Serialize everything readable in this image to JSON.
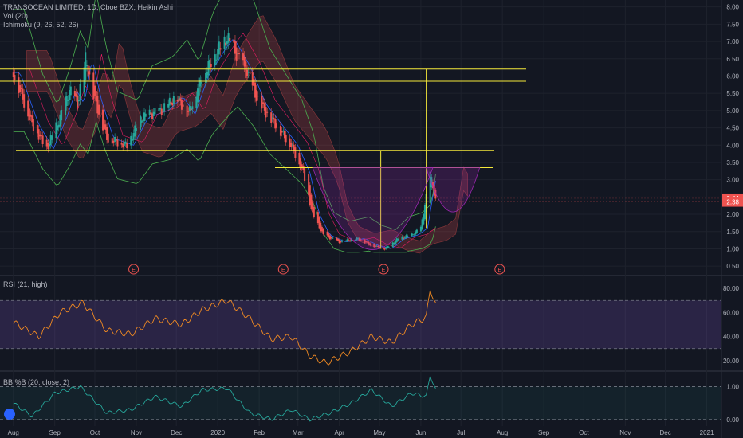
{
  "legend": {
    "symbol": "TRANSOCEAN LIMITED, 1D, Cboe BZX, Heikin Ashi",
    "vol": "Vol (20)",
    "ichimoku": "Ichimoku (9, 26, 52, 26)"
  },
  "panes": {
    "rsi_label": "RSI (21, high)",
    "bb_label": "BB %B (20, close, 2)"
  },
  "colors": {
    "up": "#26a69a",
    "down": "#ef5350",
    "yellow": "#f5e93a",
    "rsi": "#f28b22",
    "bb": "#26a69a",
    "price_tag": "#ef5350"
  },
  "chart_data": [
    {
      "type": "candlestick",
      "title": "TRANSOCEAN LIMITED, 1D, Cboe BZX, Heikin Ashi",
      "x_tick_labels": [
        "Aug",
        "Sep",
        "Oct",
        "Nov",
        "Dec",
        "2020",
        "Feb",
        "Mar",
        "Apr",
        "May",
        "Jun",
        "Jul",
        "Aug",
        "Sep",
        "Oct",
        "Nov",
        "Dec",
        "2021"
      ],
      "y_ticks": [
        "8.00",
        "7.50",
        "7.00",
        "6.50",
        "6.00",
        "5.50",
        "5.00",
        "4.50",
        "4.00",
        "3.50",
        "3.00",
        "2.50",
        "2.00",
        "1.50",
        "1.00",
        "0.50"
      ],
      "ylim": [
        0.25,
        8.2
      ],
      "price_labels": [
        "2.44",
        "2.38"
      ],
      "earnings_markers": [
        "E",
        "E",
        "E",
        "E"
      ],
      "earnings_dates": [
        "2019-10-30",
        "2020-02-19",
        "2020-05-04",
        "2020-07-30"
      ],
      "close_path": [
        {
          "x": "2019-08-01",
          "y": 6.1
        },
        {
          "x": "2019-08-15",
          "y": 4.6
        },
        {
          "x": "2019-08-26",
          "y": 3.9
        },
        {
          "x": "2019-09-05",
          "y": 4.8
        },
        {
          "x": "2019-09-12",
          "y": 5.6
        },
        {
          "x": "2019-09-18",
          "y": 5.2
        },
        {
          "x": "2019-09-24",
          "y": 6.5
        },
        {
          "x": "2019-10-01",
          "y": 5.3
        },
        {
          "x": "2019-10-10",
          "y": 4.2
        },
        {
          "x": "2019-10-25",
          "y": 4.0
        },
        {
          "x": "2019-11-05",
          "y": 4.8
        },
        {
          "x": "2019-11-20",
          "y": 5.0
        },
        {
          "x": "2019-12-01",
          "y": 5.4
        },
        {
          "x": "2019-12-10",
          "y": 4.9
        },
        {
          "x": "2019-12-20",
          "y": 6.0
        },
        {
          "x": "2020-01-02",
          "y": 6.8
        },
        {
          "x": "2020-01-08",
          "y": 7.1
        },
        {
          "x": "2020-01-20",
          "y": 6.3
        },
        {
          "x": "2020-02-01",
          "y": 5.2
        },
        {
          "x": "2020-02-15",
          "y": 4.5
        },
        {
          "x": "2020-02-25",
          "y": 4.0
        },
        {
          "x": "2020-03-05",
          "y": 3.2
        },
        {
          "x": "2020-03-12",
          "y": 2.0
        },
        {
          "x": "2020-03-20",
          "y": 1.4
        },
        {
          "x": "2020-04-01",
          "y": 1.2
        },
        {
          "x": "2020-04-15",
          "y": 1.3
        },
        {
          "x": "2020-04-25",
          "y": 1.1
        },
        {
          "x": "2020-05-05",
          "y": 1.0
        },
        {
          "x": "2020-05-15",
          "y": 1.3
        },
        {
          "x": "2020-05-25",
          "y": 1.4
        },
        {
          "x": "2020-06-01",
          "y": 1.6
        },
        {
          "x": "2020-06-08",
          "y": 3.2
        },
        {
          "x": "2020-06-12",
          "y": 2.4
        }
      ],
      "horizontal_levels": [
        6.2,
        5.85,
        3.85,
        3.35
      ],
      "annotations": [
        {
          "type": "vertical",
          "x": "2020-06-05",
          "from": 6.2,
          "to": 1.6
        },
        {
          "type": "vertical",
          "x": "2020-05-02",
          "from": 3.85,
          "to": 1.0
        },
        {
          "type": "arc",
          "from_x": "2020-03-12",
          "to_x": "2020-06-10",
          "bottom": 0.85,
          "top": 3.35
        },
        {
          "type": "arc",
          "from_x": "2020-06-05",
          "to_x": "2020-07-15",
          "bottom": 2.0,
          "top": 3.35
        }
      ]
    },
    {
      "type": "line",
      "title": "RSI (21, high)",
      "y_ticks": [
        "80.00",
        "60.00",
        "40.00",
        "20.00"
      ],
      "ylim": [
        12,
        90
      ],
      "band": [
        70,
        30
      ],
      "series": [
        {
          "values": [
            {
              "x": "2019-08-01",
              "y": 52
            },
            {
              "x": "2019-08-20",
              "y": 40
            },
            {
              "x": "2019-09-05",
              "y": 60
            },
            {
              "x": "2019-09-22",
              "y": 68
            },
            {
              "x": "2019-10-10",
              "y": 45
            },
            {
              "x": "2019-10-28",
              "y": 42
            },
            {
              "x": "2019-11-15",
              "y": 55
            },
            {
              "x": "2019-12-05",
              "y": 50
            },
            {
              "x": "2019-12-20",
              "y": 62
            },
            {
              "x": "2020-01-08",
              "y": 70
            },
            {
              "x": "2020-01-25",
              "y": 55
            },
            {
              "x": "2020-02-10",
              "y": 38
            },
            {
              "x": "2020-02-25",
              "y": 40
            },
            {
              "x": "2020-03-10",
              "y": 24
            },
            {
              "x": "2020-03-22",
              "y": 18
            },
            {
              "x": "2020-04-10",
              "y": 28
            },
            {
              "x": "2020-04-25",
              "y": 40
            },
            {
              "x": "2020-05-10",
              "y": 35
            },
            {
              "x": "2020-05-25",
              "y": 50
            },
            {
              "x": "2020-06-05",
              "y": 56
            },
            {
              "x": "2020-06-08",
              "y": 80
            },
            {
              "x": "2020-06-12",
              "y": 66
            }
          ]
        }
      ]
    },
    {
      "type": "line",
      "title": "BB %B (20, close, 2)",
      "y_ticks": [
        "1.00",
        "0.00"
      ],
      "ylim": [
        -0.2,
        1.45
      ],
      "series": [
        {
          "values": [
            {
              "x": "2019-08-01",
              "y": 0.5
            },
            {
              "x": "2019-08-15",
              "y": 0.1
            },
            {
              "x": "2019-09-01",
              "y": 0.8
            },
            {
              "x": "2019-09-20",
              "y": 1.0
            },
            {
              "x": "2019-10-10",
              "y": 0.2
            },
            {
              "x": "2019-10-28",
              "y": 0.3
            },
            {
              "x": "2019-11-15",
              "y": 0.7
            },
            {
              "x": "2019-12-05",
              "y": 0.4
            },
            {
              "x": "2019-12-20",
              "y": 0.9
            },
            {
              "x": "2020-01-08",
              "y": 0.95
            },
            {
              "x": "2020-01-25",
              "y": 0.2
            },
            {
              "x": "2020-02-10",
              "y": 0.0
            },
            {
              "x": "2020-02-25",
              "y": 0.3
            },
            {
              "x": "2020-03-10",
              "y": 0.0
            },
            {
              "x": "2020-03-25",
              "y": 0.2
            },
            {
              "x": "2020-04-10",
              "y": 0.5
            },
            {
              "x": "2020-04-25",
              "y": 0.9
            },
            {
              "x": "2020-05-10",
              "y": 0.4
            },
            {
              "x": "2020-05-25",
              "y": 0.8
            },
            {
              "x": "2020-06-05",
              "y": 0.7
            },
            {
              "x": "2020-06-08",
              "y": 1.35
            },
            {
              "x": "2020-06-12",
              "y": 0.9
            }
          ]
        }
      ]
    }
  ]
}
